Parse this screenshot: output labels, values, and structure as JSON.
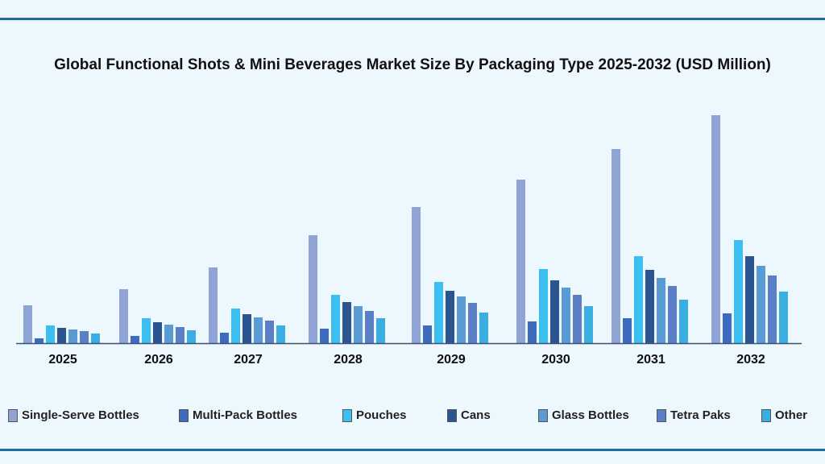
{
  "chart_data": {
    "type": "bar",
    "title": "Global Functional Shots & Mini Beverages Market Size By Packaging Type 2025-2032 (USD Million)",
    "xlabel": "",
    "ylabel": "",
    "grid": false,
    "legend_position": "bottom",
    "categories": [
      "2025",
      "2026",
      "2027",
      "2028",
      "2029",
      "2030",
      "2031",
      "2032"
    ],
    "series": [
      {
        "name": "Single-Serve Bottles",
        "color": "#8fa3d4",
        "values": [
          47,
          67,
          94,
          134,
          169,
          203,
          241,
          283
        ]
      },
      {
        "name": "Multi-Pack Bottles",
        "color": "#3d6bbf",
        "values": [
          6,
          9,
          13,
          18,
          22,
          27,
          31,
          37
        ]
      },
      {
        "name": "Pouches",
        "color": "#3bbff0",
        "values": [
          22,
          31,
          43,
          60,
          76,
          92,
          108,
          128
        ]
      },
      {
        "name": "Cans",
        "color": "#2c5490",
        "values": [
          19,
          26,
          36,
          51,
          65,
          78,
          91,
          108
        ]
      },
      {
        "name": "Glass Bottles",
        "color": "#5b9bd5",
        "values": [
          17,
          23,
          32,
          46,
          58,
          69,
          81,
          96
        ]
      },
      {
        "name": "Tetra Paks",
        "color": "#5b7fc6",
        "values": [
          15,
          20,
          28,
          40,
          50,
          60,
          71,
          84
        ]
      },
      {
        "name": "Other",
        "color": "#3aaee0",
        "values": [
          12,
          16,
          22,
          31,
          38,
          46,
          54,
          64
        ]
      }
    ]
  }
}
